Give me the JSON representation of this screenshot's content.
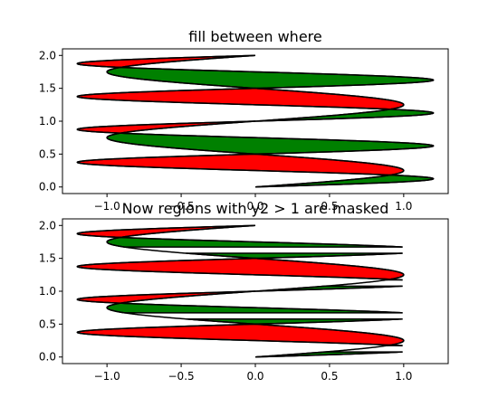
{
  "chart_data": [
    {
      "type": "area",
      "title": "fill between where",
      "xlabel": "",
      "ylabel": "",
      "xlim": [
        -1.3,
        1.3
      ],
      "ylim": [
        -0.1,
        2.1
      ],
      "xticks": [
        -1.0,
        -0.5,
        0.0,
        0.5,
        1.0
      ],
      "xtick_labels": [
        "−1.0",
        "−0.5",
        "0.0",
        "0.5",
        "1.0"
      ],
      "yticks": [
        0.0,
        0.5,
        1.0,
        1.5,
        2.0
      ],
      "ytick_labels": [
        "0.0",
        "0.5",
        "1.0",
        "1.5",
        "2.0"
      ],
      "grid": false,
      "curves": {
        "y_range": [
          0.0,
          2.0
        ],
        "x1": "sin(2*pi*y)",
        "x2": "1.2*sin(4*pi*y)",
        "fill_green_where": "x2 >= x1",
        "fill_red_where": "x2 <= x1"
      },
      "series_colors": {
        "green": "#008000",
        "red": "#ff0000"
      },
      "masked": false
    },
    {
      "type": "area",
      "title": "Now regions with y2 > 1 are masked",
      "xlabel": "",
      "ylabel": "",
      "xlim": [
        -1.3,
        1.3
      ],
      "ylim": [
        -0.1,
        2.1
      ],
      "xticks": [
        -1.0,
        -0.5,
        0.0,
        0.5,
        1.0
      ],
      "xtick_labels": [
        "−1.0",
        "−0.5",
        "0.0",
        "0.5",
        "1.0"
      ],
      "yticks": [
        0.0,
        0.5,
        1.0,
        1.5,
        2.0
      ],
      "ytick_labels": [
        "0.0",
        "0.5",
        "1.0",
        "1.5",
        "2.0"
      ],
      "grid": false,
      "curves": {
        "y_range": [
          0.0,
          2.0
        ],
        "x1": "sin(2*pi*y)",
        "x2": "1.2*sin(4*pi*y)",
        "fill_green_where": "x2 >= x1",
        "fill_red_where": "x2 <= x1",
        "mask": "x2 > 1.0"
      },
      "series_colors": {
        "green": "#008000",
        "red": "#ff0000"
      },
      "masked": true
    }
  ]
}
